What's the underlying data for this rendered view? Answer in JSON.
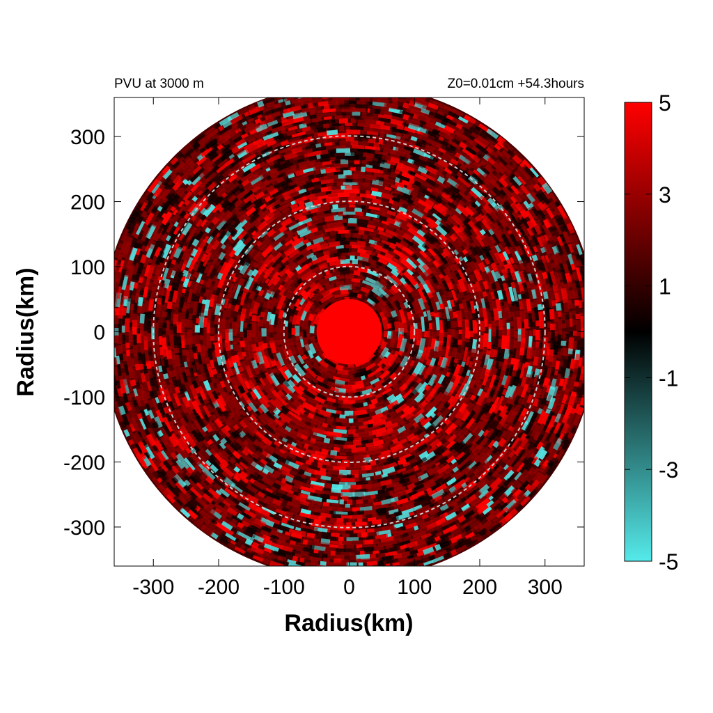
{
  "chart_data": {
    "type": "heatmap",
    "title_left": "PVU at  3000 m",
    "title_right": "Z0=0.01cm  +54.3hours",
    "xlabel": "Radius(km)",
    "ylabel": "Radius(km)",
    "xlim": [
      -360,
      360
    ],
    "ylim": [
      -360,
      360
    ],
    "x_ticks": [
      -300,
      -200,
      -100,
      0,
      100,
      200,
      300
    ],
    "y_ticks": [
      300,
      200,
      100,
      0,
      -100,
      -200,
      -300
    ],
    "domain_radius": 380,
    "range_rings_km": [
      100,
      200,
      300
    ],
    "eye_region": {
      "center": [
        0,
        0
      ],
      "radius": 50,
      "value": 5
    },
    "colorbar": {
      "min": -5,
      "max": 5,
      "tick_values": [
        5,
        3,
        1,
        -1,
        -3,
        -5
      ],
      "tick_labels": [
        "5",
        "3",
        "1",
        "-1",
        "-3",
        "-5"
      ],
      "stops": [
        {
          "value": 5,
          "color": "#ff0000"
        },
        {
          "value": 0,
          "color": "#000000"
        },
        {
          "value": -5,
          "color": "#55eaea"
        }
      ]
    },
    "field_description_colors": {
      "positive": "#ff0000",
      "neutral": "#000000",
      "negative": "#55eaea"
    }
  }
}
